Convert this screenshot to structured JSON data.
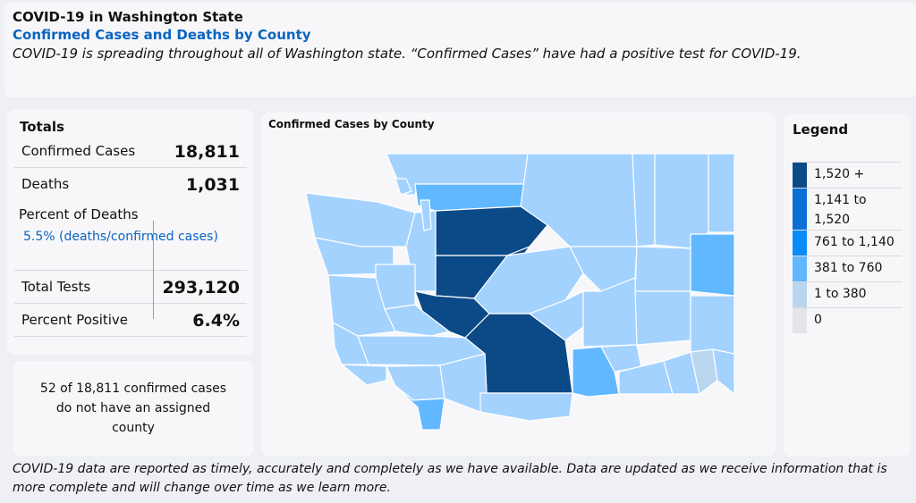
{
  "header": {
    "title": "COVID-19 in Washington State",
    "subtitle": "Confirmed Cases and Deaths by County",
    "description": "COVID-19 is spreading throughout all of Washington state. “Confirmed Cases” have had a positive test for COVID-19."
  },
  "totals": {
    "title": "Totals",
    "confirmed_label": "Confirmed Cases",
    "confirmed_value": "18,811",
    "deaths_label": "Deaths",
    "deaths_value": "1,031",
    "percent_deaths_label": "Percent of Deaths",
    "percent_deaths_value": "5.5% (deaths/confirmed cases)",
    "tests_label": "Total Tests",
    "tests_value": "293,120",
    "positive_label": "Percent Positive",
    "positive_value": "6.4%"
  },
  "note": "52 of 18,811 confirmed cases do not have an assigned county",
  "map": {
    "title": "Confirmed Cases by County",
    "colors": {
      "c0": "#e9e8ee",
      "c1": "#e4e4ea",
      "c2": "#b9d6ee",
      "c3": "#a3d2ff",
      "c4": "#61b8ff",
      "c5": "#0a8cf6",
      "c6": "#0b5fc2",
      "c7": "#0b4a86"
    }
  },
  "legend": {
    "title": "Legend",
    "items": [
      {
        "label": "1,520 +",
        "color": "#0b4a86"
      },
      {
        "label": "1,141 to 1,520",
        "color": "#0b6fd6"
      },
      {
        "label": "761 to 1,140",
        "color": "#0a8cf6"
      },
      {
        "label": "381 to 760",
        "color": "#61b8ff"
      },
      {
        "label": "1 to 380",
        "color": "#b9d6ee"
      },
      {
        "label": "0",
        "color": "#e4e4ea"
      }
    ]
  },
  "footer": "COVID-19 data are reported as timely, accurately and completely as we have available. Data are updated as we receive information that is more complete and will change over time as we learn more."
}
